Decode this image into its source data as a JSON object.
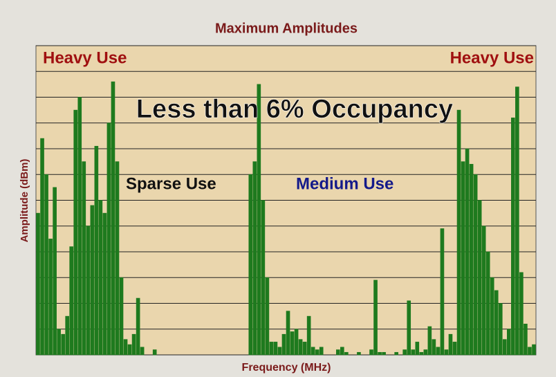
{
  "chart_data": {
    "type": "bar",
    "title": "Maximum Amplitudes",
    "x_label": "Frequency (MHz)",
    "y_label": "Amplitude (dBm)",
    "annotations": [
      "Heavy Use",
      "Heavy Use",
      "Less than 6% Occupancy",
      "Sparse Use",
      "Medium Use"
    ],
    "color": "#1e7a1e",
    "grid": true,
    "ylim": [
      0,
      12
    ],
    "yticks": [
      0,
      1,
      2,
      3,
      4,
      5,
      6,
      7,
      8,
      9,
      10,
      11,
      12
    ],
    "categories": [
      null,
      null,
      null,
      null,
      null,
      null,
      null,
      null,
      null,
      null,
      null,
      null,
      null,
      null,
      null,
      null,
      null,
      null,
      null,
      null,
      null,
      null,
      null,
      null,
      null,
      null,
      null,
      null,
      null,
      null,
      null,
      null,
      null,
      null,
      null,
      null,
      null,
      null,
      null,
      null,
      null,
      null,
      null,
      null,
      null,
      null,
      null,
      null,
      null,
      null,
      null,
      null,
      null,
      null,
      null,
      null,
      null,
      null,
      null,
      null,
      null,
      null,
      null,
      null,
      null,
      null,
      null,
      null,
      null,
      null,
      null,
      null,
      null,
      null,
      null,
      null,
      null,
      null,
      null,
      null,
      null,
      null,
      null,
      null,
      null,
      null,
      null,
      null,
      null,
      null,
      null,
      null,
      null,
      null,
      null,
      null,
      null,
      null,
      null,
      null,
      null,
      null,
      null,
      null,
      null,
      null,
      null,
      null,
      null,
      null,
      null,
      null,
      null,
      null,
      null,
      null,
      null,
      null,
      null,
      null
    ],
    "values": [
      5.5,
      8.4,
      7,
      4.5,
      6.5,
      1,
      0.8,
      1.5,
      4.2,
      9.5,
      10,
      7.5,
      5,
      5.8,
      8.1,
      6,
      5.5,
      9,
      10.6,
      7.5,
      3,
      0.6,
      0.4,
      0.8,
      2.2,
      0.3,
      0,
      0,
      0.2,
      0,
      0,
      0,
      0,
      0,
      0,
      0,
      0,
      0,
      0,
      0,
      0,
      0,
      0,
      0,
      0,
      0,
      0,
      0,
      0,
      0,
      0,
      7,
      7.5,
      10.5,
      6,
      3,
      0.5,
      0.5,
      0.3,
      0.8,
      1.7,
      0.9,
      1,
      0.6,
      0.5,
      1.5,
      0.3,
      0.2,
      0.3,
      0,
      0,
      0,
      0.2,
      0.3,
      0.1,
      0,
      0,
      0.1,
      0,
      0,
      0.2,
      2.9,
      0.1,
      0.1,
      0,
      0,
      0.1,
      0,
      0.2,
      2.1,
      0.2,
      0.5,
      0.1,
      0.2,
      1.1,
      0.6,
      0.3,
      4.9,
      0.2,
      0.8,
      0.5,
      9.5,
      7.5,
      8,
      7.4,
      7,
      6,
      5,
      4,
      3,
      2.5,
      2,
      0.6,
      1,
      9.2,
      10.4,
      3.2,
      1.2,
      0.3,
      0.4
    ]
  }
}
